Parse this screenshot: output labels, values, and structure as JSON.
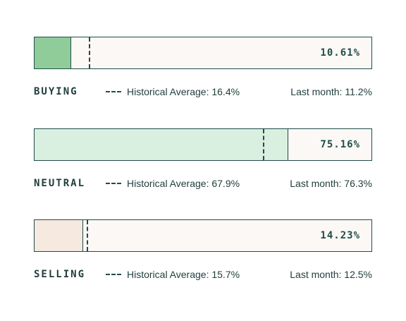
{
  "colors": {
    "border": "#1f4d4a",
    "bar_bg": "#fcf8f5",
    "text": "#1f3d3a"
  },
  "chart_data": {
    "type": "bar",
    "orientation": "horizontal",
    "xlim": [
      0,
      100
    ],
    "rows": [
      {
        "label": "BUYING",
        "value": 10.61,
        "value_text": "10.61%",
        "historical_average": 16.4,
        "historical_text": "Historical Average: 16.4%",
        "last_month": 11.2,
        "last_month_text": "Last month: 11.2%",
        "fill_color": "#8fcc9a"
      },
      {
        "label": "NEUTRAL",
        "value": 75.16,
        "value_text": "75.16%",
        "historical_average": 67.9,
        "historical_text": "Historical Average: 67.9%",
        "last_month": 76.3,
        "last_month_text": "Last month: 76.3%",
        "fill_color": "#d9efdf"
      },
      {
        "label": "SELLING",
        "value": 14.23,
        "value_text": "14.23%",
        "historical_average": 15.7,
        "historical_text": "Historical Average: 15.7%",
        "last_month": 12.5,
        "last_month_text": "Last month: 12.5%",
        "fill_color": "#f6e9df"
      }
    ]
  }
}
